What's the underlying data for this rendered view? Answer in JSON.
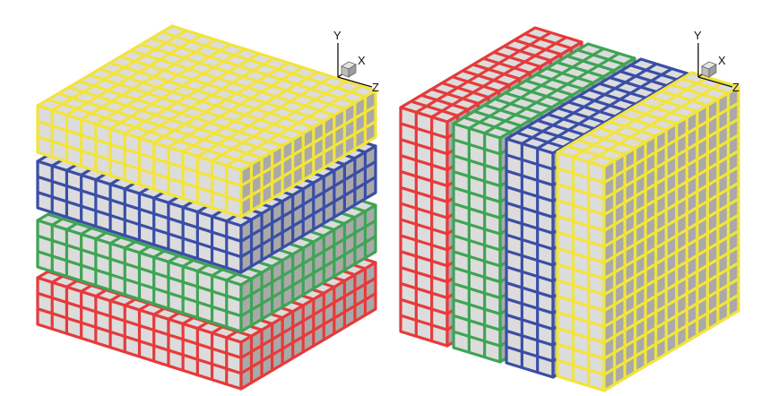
{
  "panels": [
    {
      "name": "left-panel",
      "arrangement": "stacked-horizontal-slabs",
      "axes": {
        "y": "Y",
        "x": "X",
        "z": "Z"
      },
      "slabs": [
        {
          "name": "red-slab",
          "color": "#e53b3b"
        },
        {
          "name": "green-slab",
          "color": "#3fa455"
        },
        {
          "name": "blue-slab",
          "color": "#3a4ea6"
        },
        {
          "name": "yellow-slab",
          "color": "#f2e43c"
        }
      ]
    },
    {
      "name": "right-panel",
      "arrangement": "side-by-side-vertical-slabs",
      "axes": {
        "y": "Y",
        "x": "X",
        "z": "Z"
      },
      "slabs": [
        {
          "name": "red-slab",
          "color": "#e53b3b"
        },
        {
          "name": "green-slab",
          "color": "#3fa455"
        },
        {
          "name": "blue-slab",
          "color": "#3a4ea6"
        },
        {
          "name": "yellow-slab",
          "color": "#f2e43c"
        }
      ]
    }
  ],
  "cell_colors": {
    "face": "#dcdcdc",
    "side": "#a9a9a9"
  }
}
